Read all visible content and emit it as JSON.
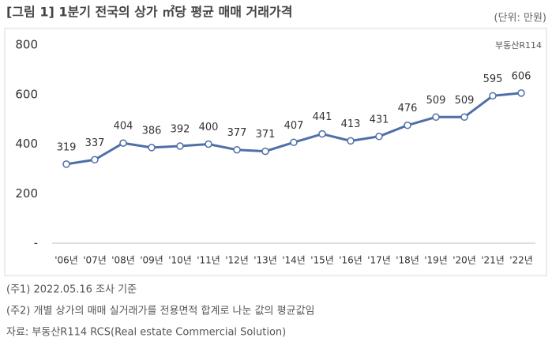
{
  "chart_data": {
    "type": "line",
    "title": "[그림 1] 1분기 전국의 상가 ㎡당 평균 매매 거래가격",
    "unit": "(단위: 만원)",
    "logo": "부동산R114",
    "categories": [
      "'06년",
      "'07년",
      "'08년",
      "'09년",
      "'10년",
      "'11년",
      "'12년",
      "'13년",
      "'14년",
      "'15년",
      "'16년",
      "'17년",
      "'18년",
      "'19년",
      "'20년",
      "'21년",
      "'22년"
    ],
    "series": [
      {
        "color": "#4e6fa8",
        "values": [
          319,
          337,
          404,
          386,
          392,
          400,
          377,
          371,
          407,
          441,
          413,
          431,
          476,
          509,
          509,
          595,
          606
        ]
      }
    ],
    "ylim": [
      0,
      800
    ],
    "yticks": [
      {
        "value": 0,
        "label": "-"
      },
      200,
      400,
      600,
      800
    ],
    "notes": [
      "(주1) 2022.05.16 조사 기준",
      "(주2) 개별 상가의 매매 실거래가를 전용면적 합계로 나눈 값의 평균값임",
      "자료: 부동산R114 RCS(Real estate Commercial Solution)"
    ]
  }
}
